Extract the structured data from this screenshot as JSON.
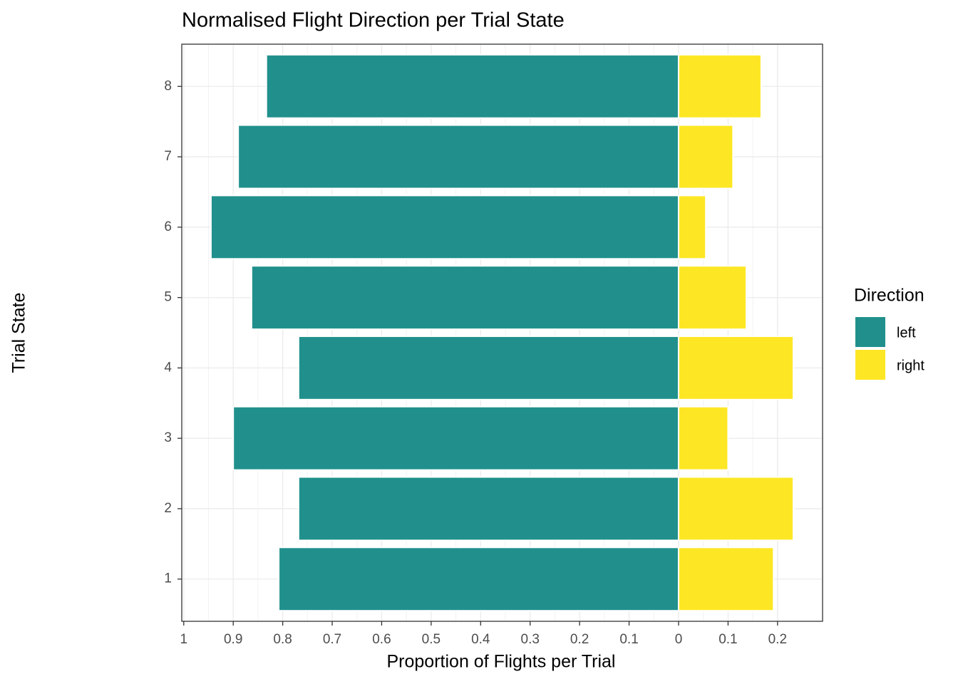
{
  "chart_data": {
    "type": "diverging-bar",
    "title": "Normalised Flight Direction per Trial State",
    "x_label": "Proportion of Flights per Trial",
    "y_label": "Trial State",
    "legend_title": "Direction",
    "legend_position": "right",
    "categories": [
      "1",
      "2",
      "3",
      "4",
      "5",
      "6",
      "7",
      "8"
    ],
    "series": [
      {
        "name": "left",
        "color": "#21908C",
        "values": [
          -0.808,
          -0.768,
          -0.9,
          -0.768,
          -0.863,
          -0.945,
          -0.89,
          -0.833
        ]
      },
      {
        "name": "right",
        "color": "#FDE725",
        "values": [
          0.192,
          0.232,
          0.1,
          0.232,
          0.137,
          0.055,
          0.11,
          0.167
        ]
      }
    ],
    "xlim": [
      -1.004,
      0.291
    ],
    "xticks": [
      {
        "value": -1,
        "label": "1"
      },
      {
        "value": -0.9,
        "label": "0.9"
      },
      {
        "value": -0.8,
        "label": "0.8"
      },
      {
        "value": -0.7,
        "label": "0.7"
      },
      {
        "value": -0.6,
        "label": "0.6"
      },
      {
        "value": -0.5,
        "label": "0.5"
      },
      {
        "value": -0.4,
        "label": "0.4"
      },
      {
        "value": -0.3,
        "label": "0.3"
      },
      {
        "value": -0.2,
        "label": "0.2"
      },
      {
        "value": -0.1,
        "label": "0.1"
      },
      0,
      0.1,
      0.2
    ],
    "grid": true
  }
}
